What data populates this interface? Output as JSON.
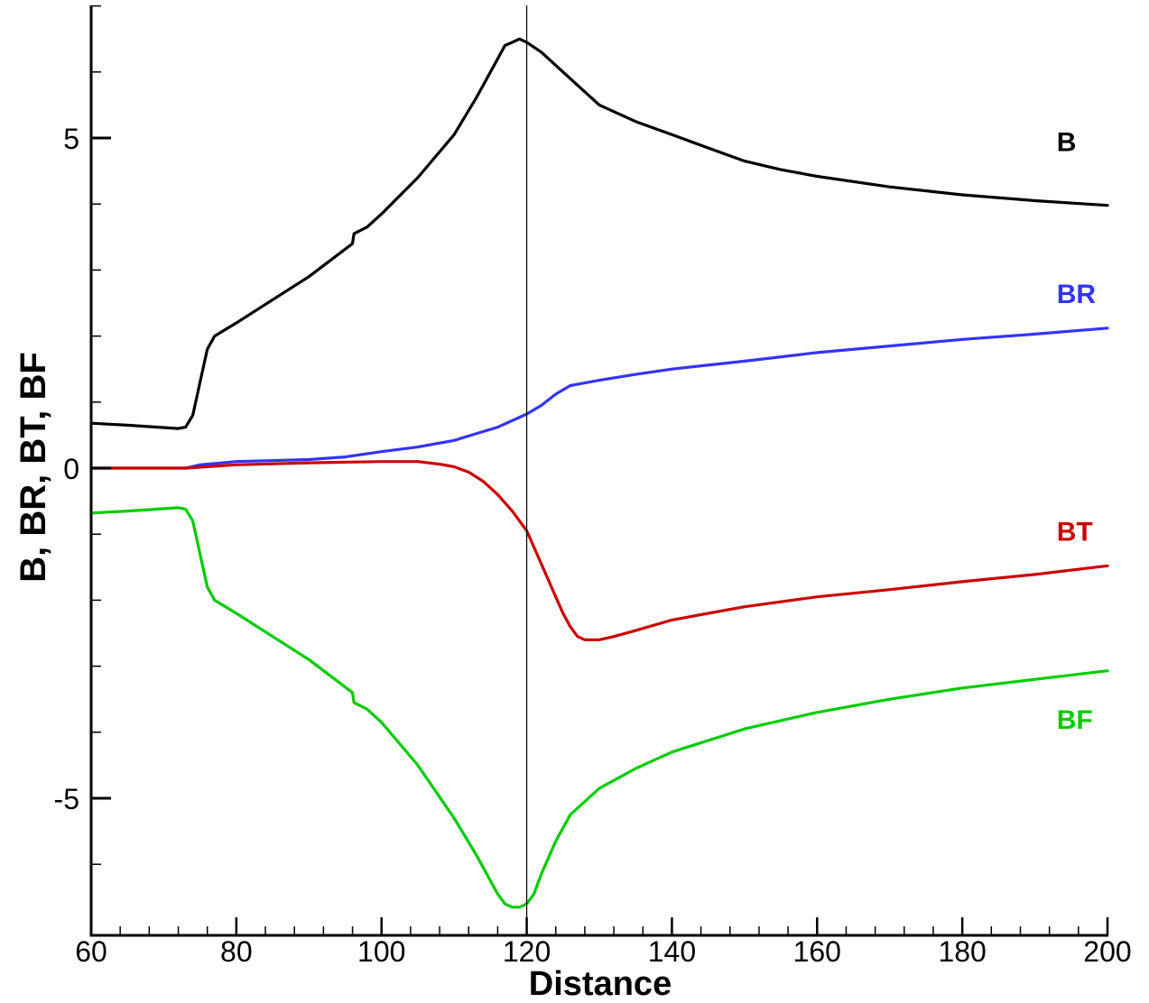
{
  "chart_data": {
    "type": "line",
    "title": "",
    "xlabel": "Distance",
    "ylabel": "B, BR, BT, BF",
    "xlim": [
      60,
      200
    ],
    "ylim": [
      -6.8,
      7.0
    ],
    "x_ticks": [
      60,
      80,
      100,
      120,
      140,
      160,
      180,
      200
    ],
    "x_tick_labels": [
      "60",
      "80",
      "100",
      "120",
      "140",
      "160",
      "180",
      "200"
    ],
    "x_minor_step": 4,
    "y_ticks": [
      -5,
      0,
      5
    ],
    "y_tick_labels": [
      "-5",
      "0",
      "5"
    ],
    "y_minor_step": 1,
    "grid": false,
    "legend": "inline labels at right",
    "vertical_line_x": 120,
    "series": [
      {
        "name": "B",
        "color": "#000000",
        "label_x": 193,
        "label_y": 4.8,
        "points": [
          [
            60,
            0.68
          ],
          [
            65,
            0.65
          ],
          [
            72,
            0.6
          ],
          [
            73,
            0.62
          ],
          [
            74,
            0.8
          ],
          [
            75,
            1.3
          ],
          [
            76,
            1.8
          ],
          [
            77,
            2.0
          ],
          [
            80,
            2.2
          ],
          [
            85,
            2.55
          ],
          [
            90,
            2.9
          ],
          [
            96,
            3.4
          ],
          [
            96.2,
            3.55
          ],
          [
            98,
            3.65
          ],
          [
            100,
            3.85
          ],
          [
            105,
            4.4
          ],
          [
            110,
            5.05
          ],
          [
            113,
            5.6
          ],
          [
            115,
            6.0
          ],
          [
            116,
            6.2
          ],
          [
            117,
            6.4
          ],
          [
            118,
            6.45
          ],
          [
            119,
            6.5
          ],
          [
            120,
            6.45
          ],
          [
            122,
            6.3
          ],
          [
            125,
            6.0
          ],
          [
            128,
            5.7
          ],
          [
            130,
            5.5
          ],
          [
            135,
            5.25
          ],
          [
            140,
            5.05
          ],
          [
            145,
            4.85
          ],
          [
            150,
            4.65
          ],
          [
            155,
            4.52
          ],
          [
            160,
            4.42
          ],
          [
            170,
            4.26
          ],
          [
            180,
            4.14
          ],
          [
            190,
            4.05
          ],
          [
            200,
            3.98
          ]
        ]
      },
      {
        "name": "BR",
        "color": "#3333ff",
        "label_x": 193,
        "label_y": 2.5,
        "points": [
          [
            60,
            0
          ],
          [
            73,
            0
          ],
          [
            75,
            0.05
          ],
          [
            80,
            0.1
          ],
          [
            90,
            0.13
          ],
          [
            95,
            0.17
          ],
          [
            100,
            0.25
          ],
          [
            105,
            0.32
          ],
          [
            110,
            0.42
          ],
          [
            113,
            0.52
          ],
          [
            116,
            0.62
          ],
          [
            118,
            0.72
          ],
          [
            120,
            0.82
          ],
          [
            122,
            0.95
          ],
          [
            124,
            1.12
          ],
          [
            126,
            1.25
          ],
          [
            130,
            1.33
          ],
          [
            135,
            1.42
          ],
          [
            140,
            1.5
          ],
          [
            150,
            1.62
          ],
          [
            160,
            1.75
          ],
          [
            170,
            1.85
          ],
          [
            180,
            1.95
          ],
          [
            190,
            2.03
          ],
          [
            200,
            2.12
          ]
        ]
      },
      {
        "name": "BT",
        "color": "#cc0000",
        "label_x": 193,
        "label_y": -1.1,
        "points": [
          [
            60,
            0
          ],
          [
            73,
            0
          ],
          [
            80,
            0.05
          ],
          [
            90,
            0.08
          ],
          [
            100,
            0.1
          ],
          [
            105,
            0.1
          ],
          [
            108,
            0.06
          ],
          [
            110,
            0.02
          ],
          [
            112,
            -0.06
          ],
          [
            114,
            -0.2
          ],
          [
            116,
            -0.4
          ],
          [
            118,
            -0.65
          ],
          [
            120,
            -0.95
          ],
          [
            122,
            -1.45
          ],
          [
            124,
            -1.95
          ],
          [
            125,
            -2.2
          ],
          [
            126,
            -2.4
          ],
          [
            127,
            -2.55
          ],
          [
            128,
            -2.6
          ],
          [
            130,
            -2.6
          ],
          [
            132,
            -2.55
          ],
          [
            135,
            -2.46
          ],
          [
            140,
            -2.3
          ],
          [
            145,
            -2.2
          ],
          [
            150,
            -2.1
          ],
          [
            160,
            -1.95
          ],
          [
            170,
            -1.84
          ],
          [
            180,
            -1.72
          ],
          [
            190,
            -1.61
          ],
          [
            200,
            -1.48
          ]
        ]
      },
      {
        "name": "BF",
        "color": "#00cc00",
        "label_x": 193,
        "label_y": -3.95,
        "points": [
          [
            60,
            -0.68
          ],
          [
            65,
            -0.65
          ],
          [
            72,
            -0.6
          ],
          [
            73,
            -0.62
          ],
          [
            74,
            -0.8
          ],
          [
            75,
            -1.3
          ],
          [
            76,
            -1.8
          ],
          [
            77,
            -2.0
          ],
          [
            80,
            -2.2
          ],
          [
            85,
            -2.55
          ],
          [
            90,
            -2.9
          ],
          [
            96,
            -3.4
          ],
          [
            96.2,
            -3.55
          ],
          [
            98,
            -3.65
          ],
          [
            100,
            -3.85
          ],
          [
            105,
            -4.5
          ],
          [
            110,
            -5.3
          ],
          [
            113,
            -5.85
          ],
          [
            115,
            -6.25
          ],
          [
            116,
            -6.45
          ],
          [
            117,
            -6.6
          ],
          [
            118,
            -6.65
          ],
          [
            119,
            -6.65
          ],
          [
            120,
            -6.6
          ],
          [
            121,
            -6.45
          ],
          [
            122,
            -6.15
          ],
          [
            124,
            -5.65
          ],
          [
            126,
            -5.25
          ],
          [
            130,
            -4.85
          ],
          [
            135,
            -4.55
          ],
          [
            140,
            -4.3
          ],
          [
            150,
            -3.95
          ],
          [
            160,
            -3.7
          ],
          [
            170,
            -3.5
          ],
          [
            180,
            -3.33
          ],
          [
            190,
            -3.2
          ],
          [
            200,
            -3.07
          ]
        ]
      }
    ]
  }
}
